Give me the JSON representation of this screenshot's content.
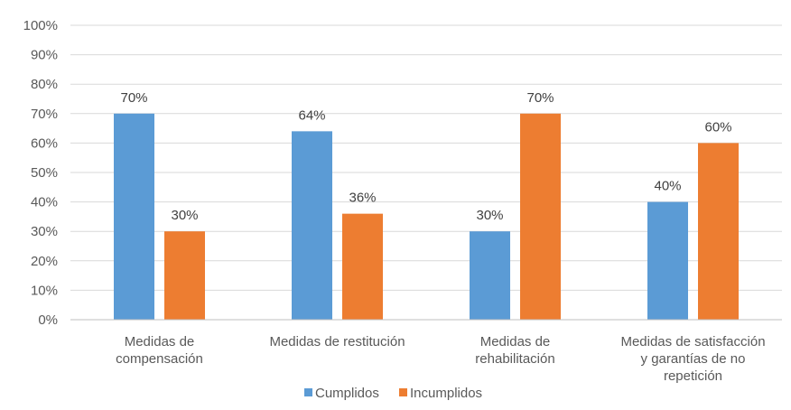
{
  "chart_data": {
    "type": "bar",
    "categories": [
      [
        "Medidas de",
        "compensación"
      ],
      [
        "Medidas de restitución"
      ],
      [
        "Medidas de",
        "rehabilitación"
      ],
      [
        "Medidas de satisfacción",
        "y garantías de no",
        "repetición"
      ]
    ],
    "series": [
      {
        "name": "Cumplidos",
        "color": "#5b9bd5",
        "values": [
          70,
          64,
          30,
          40
        ],
        "labels": [
          "70%",
          "64%",
          "30%",
          "40%"
        ]
      },
      {
        "name": "Incumplidos",
        "color": "#ed7d31",
        "values": [
          30,
          36,
          70,
          60
        ],
        "labels": [
          "30%",
          "36%",
          "70%",
          "60%"
        ]
      }
    ],
    "ylim": [
      0,
      100
    ],
    "y_ticks": [
      0,
      10,
      20,
      30,
      40,
      50,
      60,
      70,
      80,
      90,
      100
    ],
    "y_tick_labels": [
      "0%",
      "10%",
      "20%",
      "30%",
      "40%",
      "50%",
      "60%",
      "70%",
      "80%",
      "90%",
      "100%"
    ],
    "grid": true,
    "legend_position": "bottom",
    "title": "",
    "xlabel": "",
    "ylabel": ""
  }
}
